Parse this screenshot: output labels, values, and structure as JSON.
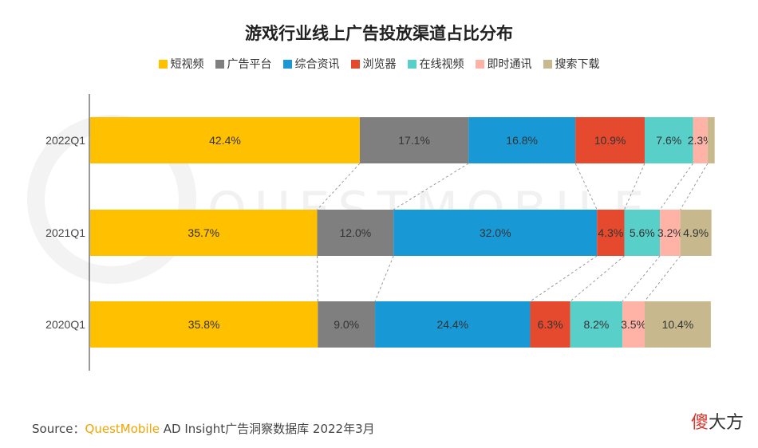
{
  "chart_data": {
    "type": "bar",
    "orientation": "horizontal",
    "stacked": true,
    "percent_stacked": true,
    "title": "游戏行业线上广告投放渠道占比分布",
    "categories": [
      "2022Q1",
      "2021Q1",
      "2020Q1"
    ],
    "series": [
      {
        "name": "短视频",
        "color": "#ffc000",
        "values": [
          42.4,
          35.7,
          35.8
        ],
        "labels": [
          "42.4%",
          "35.7%",
          "35.8%"
        ]
      },
      {
        "name": "广告平台",
        "color": "#7f7f7f",
        "values": [
          17.1,
          12.0,
          9.0
        ],
        "labels": [
          "17.1%",
          "12.0%",
          "9.0%"
        ]
      },
      {
        "name": "综合资讯",
        "color": "#1899d6",
        "values": [
          16.8,
          32.0,
          24.4
        ],
        "labels": [
          "16.8%",
          "32.0%",
          "24.4%"
        ]
      },
      {
        "name": "浏览器",
        "color": "#e64a2e",
        "values": [
          10.9,
          4.3,
          6.3
        ],
        "labels": [
          "10.9%",
          "4.3%",
          "6.3%"
        ]
      },
      {
        "name": "在线视频",
        "color": "#58cfc9",
        "values": [
          7.6,
          5.6,
          8.2
        ],
        "labels": [
          "7.6%",
          "5.6%",
          "8.2%"
        ]
      },
      {
        "name": "即时通讯",
        "color": "#ffb3a7",
        "values": [
          2.3,
          3.2,
          3.5
        ],
        "labels": [
          "2.3%",
          "3.2%",
          "3.5%"
        ]
      },
      {
        "name": "搜索下载",
        "color": "#c7b98d",
        "values": [
          1.1,
          4.9,
          10.4
        ],
        "labels": [
          "",
          "4.9%",
          "10.4%"
        ]
      }
    ],
    "xlim": [
      0,
      100
    ],
    "legend_position": "top",
    "connector_lines": true,
    "grid": false
  },
  "footer": {
    "source_prefix": "Source：",
    "source_brand": "QuestMobile",
    "source_rest": " AD Insight广告洞察数据库 2022年3月"
  },
  "logo": {
    "first_char": "傻",
    "rest": "大方"
  },
  "watermark": "QUESTMOBILE"
}
